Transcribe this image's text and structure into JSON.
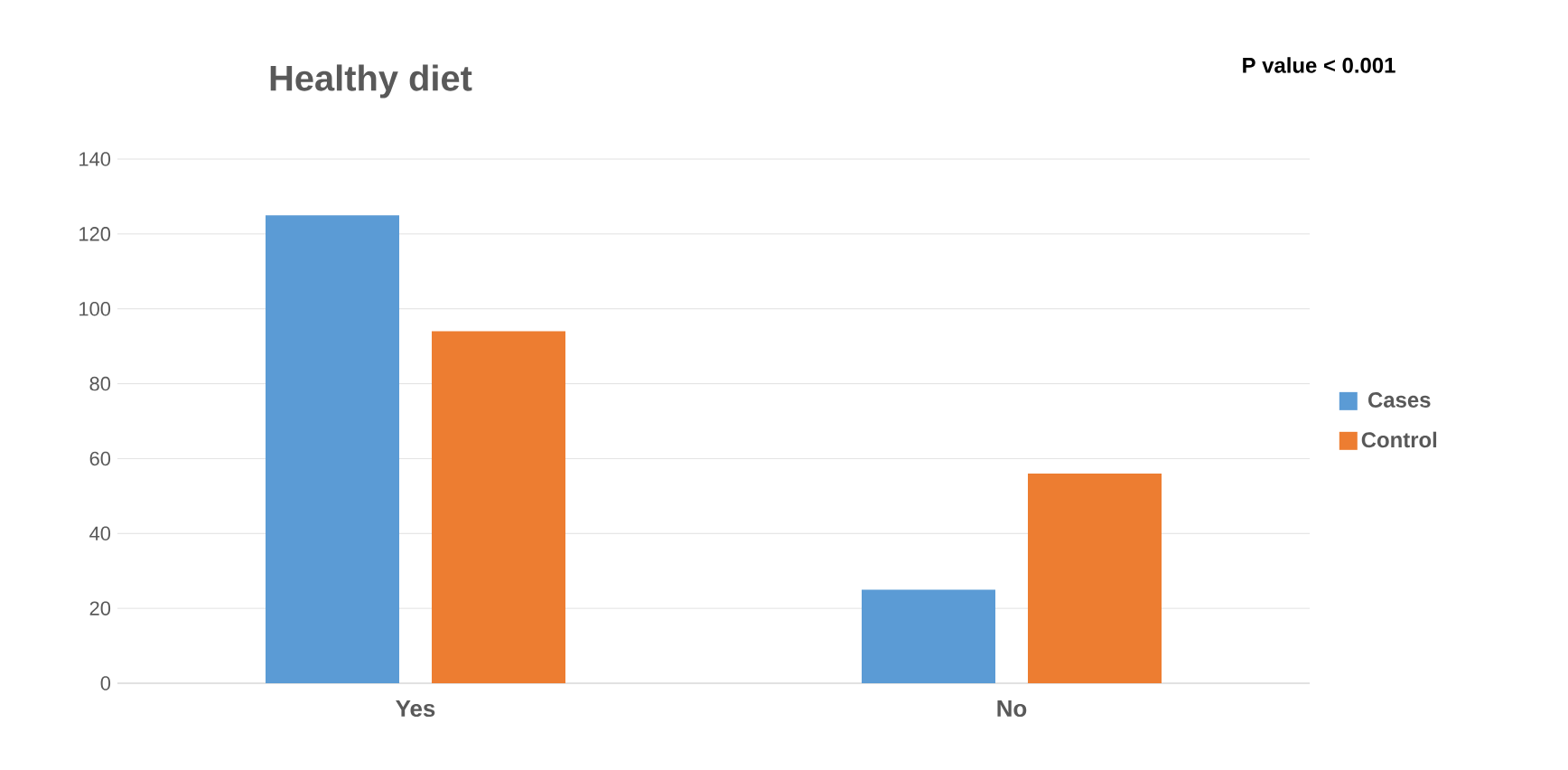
{
  "chart_data": {
    "type": "bar",
    "title": "Healthy diet",
    "annotations": [
      "P value <  0.001"
    ],
    "categories": [
      "Yes",
      "No"
    ],
    "series": [
      {
        "name": "Cases",
        "color": "#5b9bd5",
        "values": [
          125,
          25
        ]
      },
      {
        "name": "Control",
        "color": "#ed7d31",
        "values": [
          94,
          56
        ]
      }
    ],
    "ylim": [
      0,
      140
    ],
    "yticks": [
      0,
      20,
      40,
      60,
      80,
      100,
      120,
      140
    ],
    "grid": "y",
    "legend": "right"
  }
}
